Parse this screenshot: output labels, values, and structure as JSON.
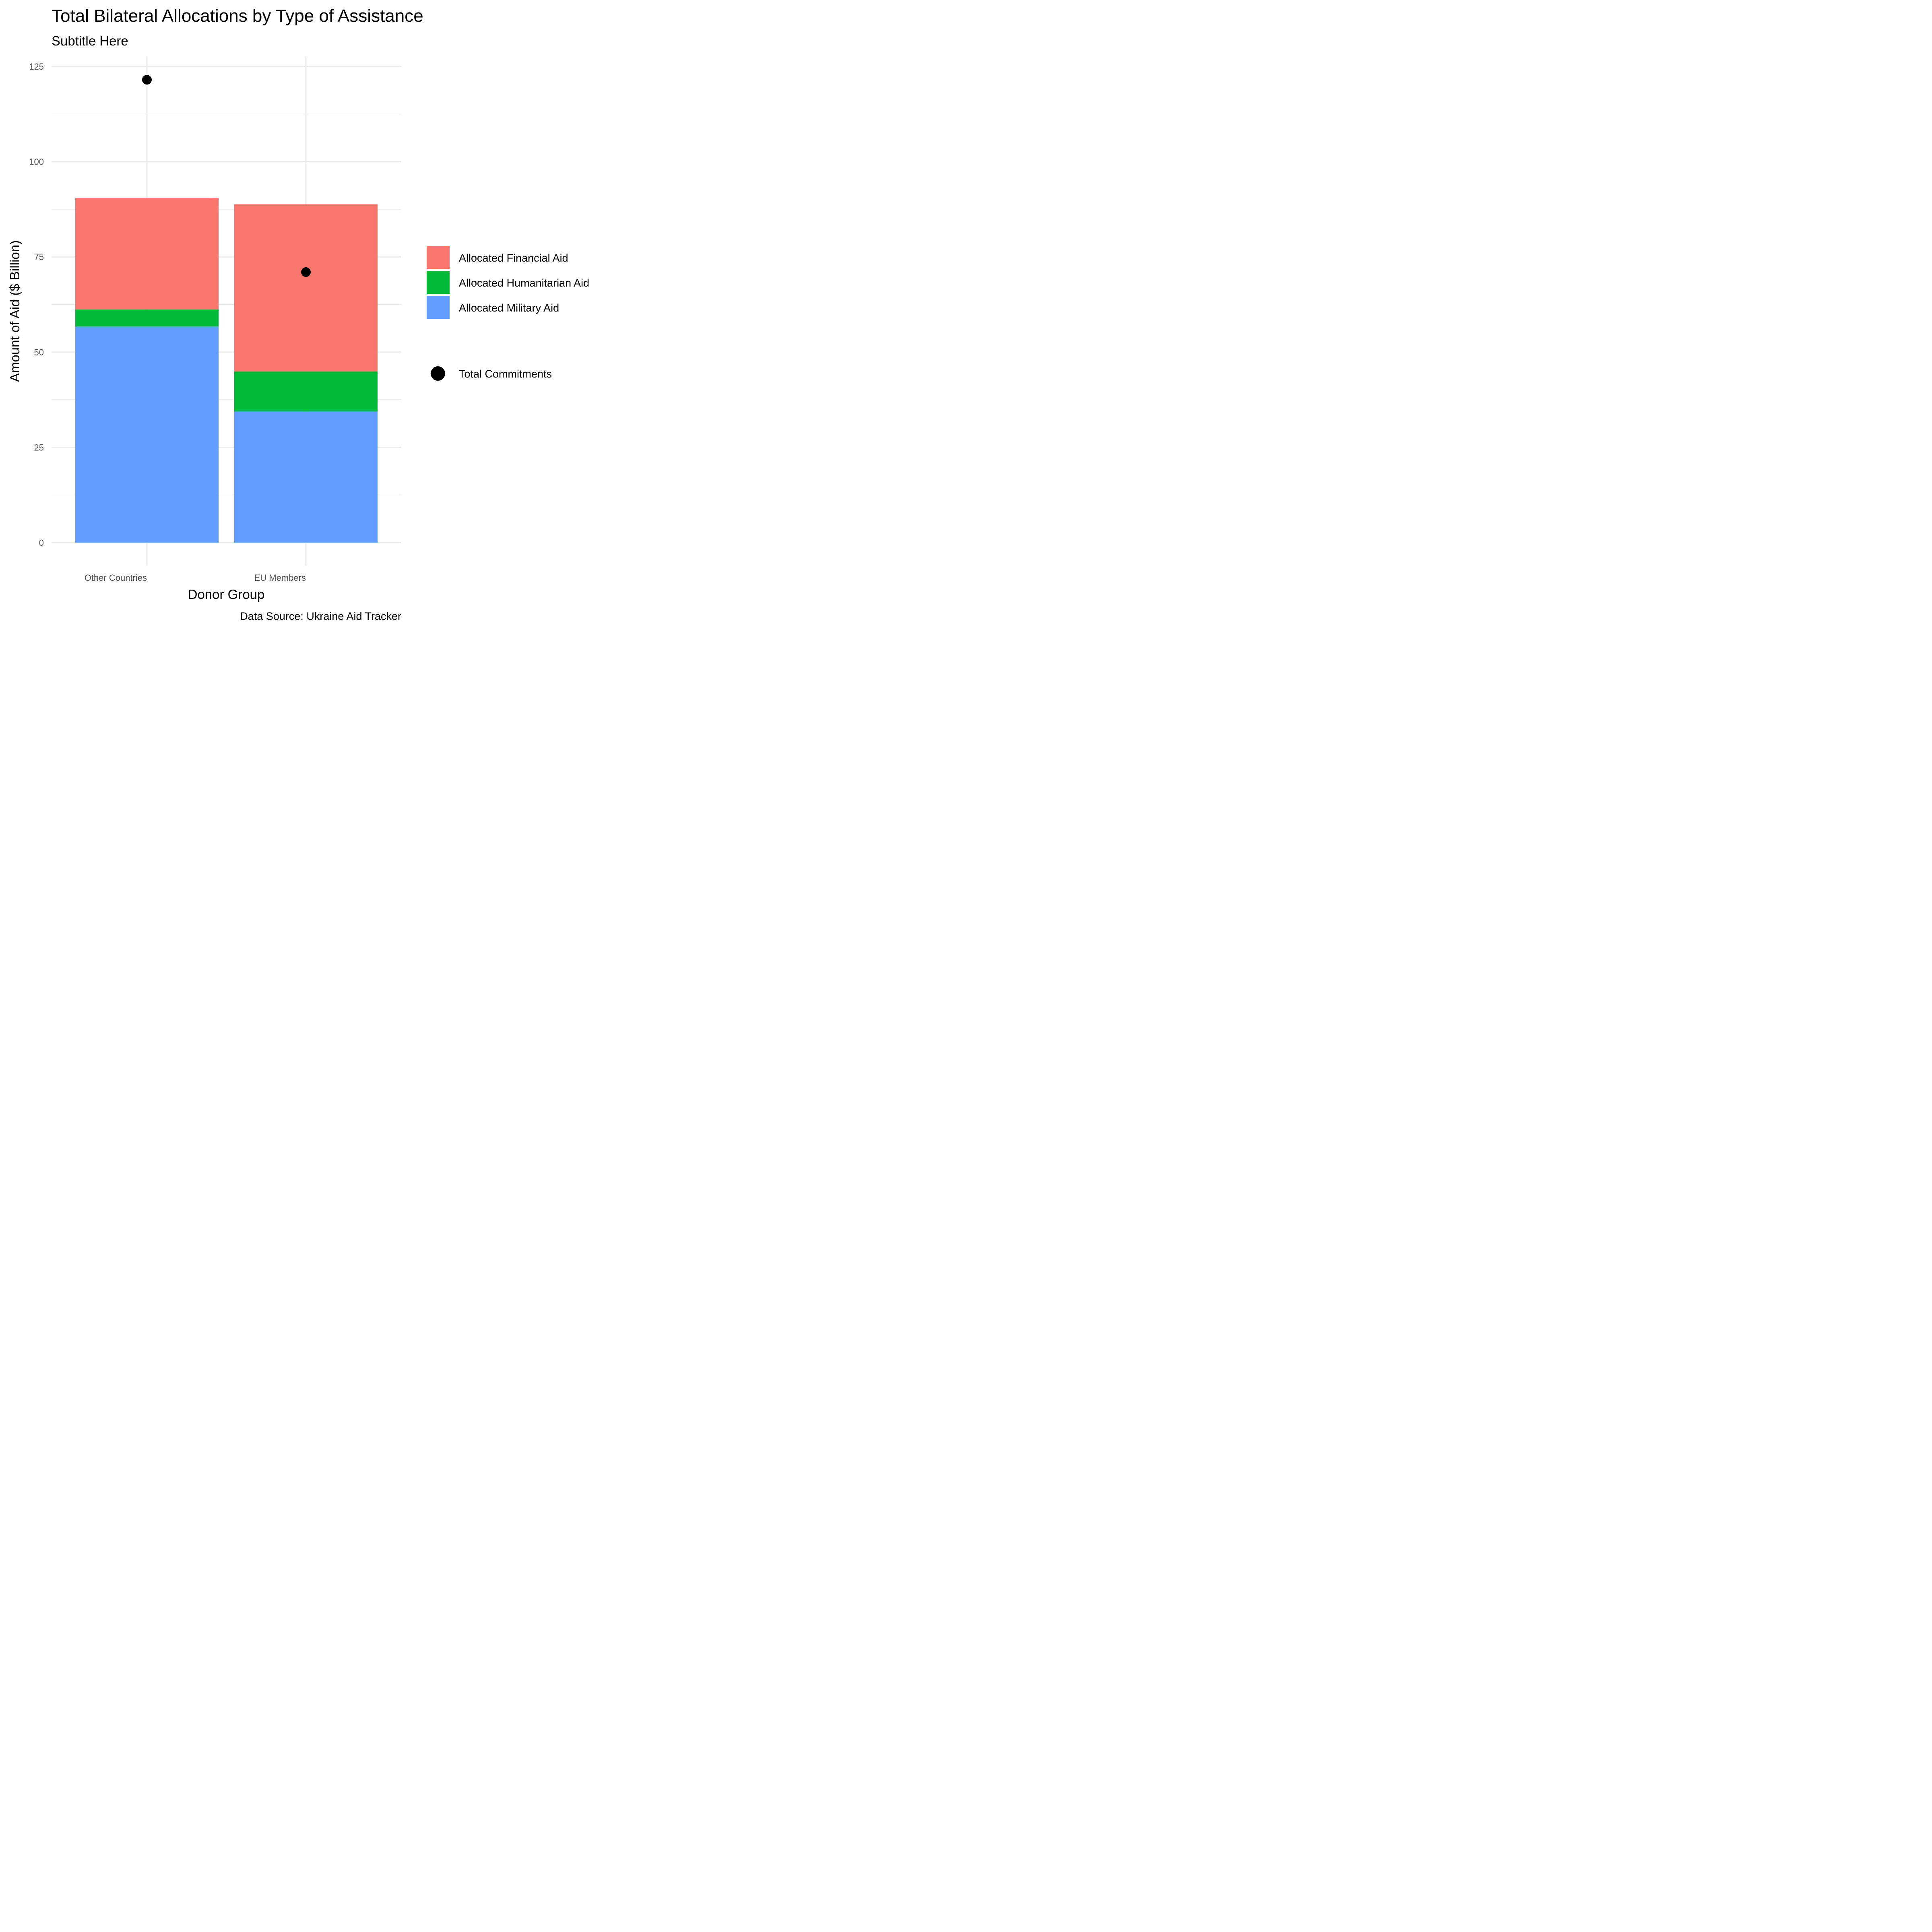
{
  "chart_data": {
    "type": "bar",
    "stacked": true,
    "title": "Total Bilateral Allocations by Type of Assistance",
    "subtitle": "Subtitle Here",
    "xlabel": "Donor Group",
    "ylabel": "Amount of Aid ($ Billion)",
    "caption": "Data Source: Ukraine Aid Tracker",
    "categories": [
      "Other Countries",
      "EU Members"
    ],
    "ylim": [
      -5,
      125
    ],
    "yticks": [
      0,
      25,
      50,
      75,
      100,
      125
    ],
    "grid": true,
    "legend_position": "right",
    "series": [
      {
        "name": "Allocated Military Aid",
        "color": "#619CFF",
        "values": [
          56.7,
          34.4
        ]
      },
      {
        "name": "Allocated Humanitarian Aid",
        "color": "#00BA38",
        "values": [
          4.5,
          10.5
        ]
      },
      {
        "name": "Allocated Financial Aid",
        "color": "#F8766D",
        "values": [
          29.2,
          43.9
        ]
      }
    ],
    "legend_order": [
      "Allocated Financial Aid",
      "Allocated Humanitarian Aid",
      "Allocated Military Aid"
    ],
    "points": {
      "name": "Total Commitments",
      "color": "#000000",
      "values": [
        121.5,
        71.0
      ]
    }
  }
}
